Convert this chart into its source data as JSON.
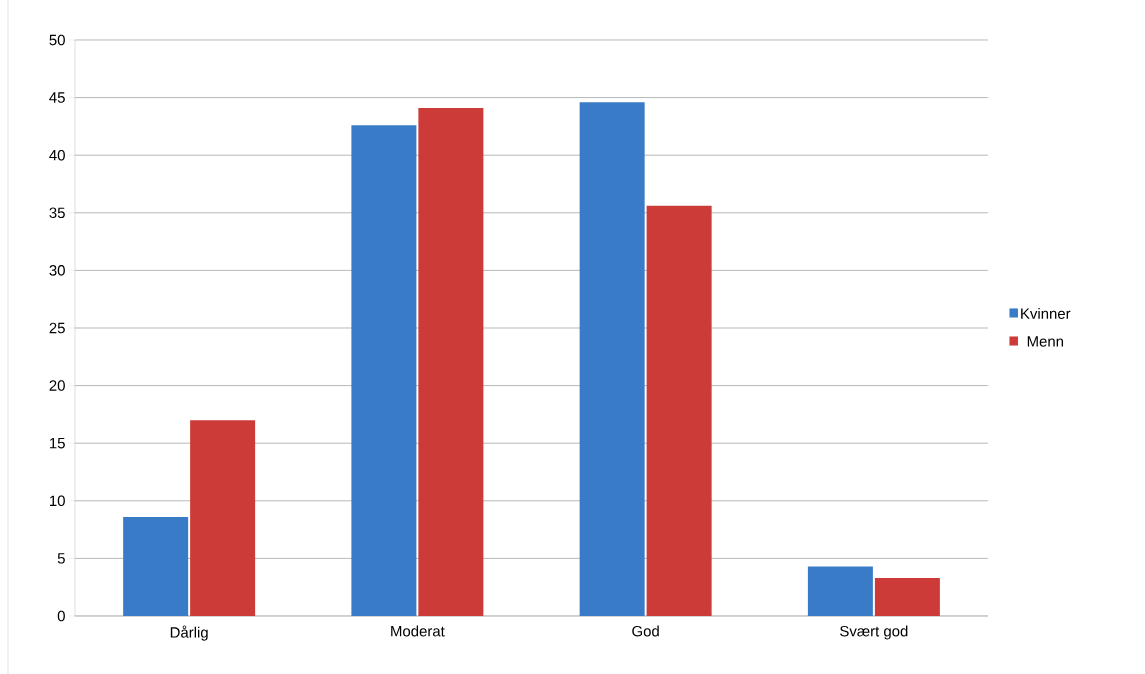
{
  "chart_data": {
    "type": "bar",
    "categories": [
      "Dårlig",
      "Moderat",
      "God",
      "Svært god"
    ],
    "series": [
      {
        "name": "Kvinner",
        "color": "#3a7bc8",
        "values": [
          8.6,
          42.6,
          44.6,
          4.3
        ]
      },
      {
        "name": "Menn",
        "color": "#cc3b37",
        "values": [
          17.0,
          44.1,
          35.6,
          3.3
        ]
      }
    ],
    "ylim": [
      0,
      50
    ],
    "yticks": [
      0,
      5,
      10,
      15,
      20,
      25,
      30,
      35,
      40,
      45,
      50
    ],
    "grid": "y",
    "legend": "right"
  }
}
